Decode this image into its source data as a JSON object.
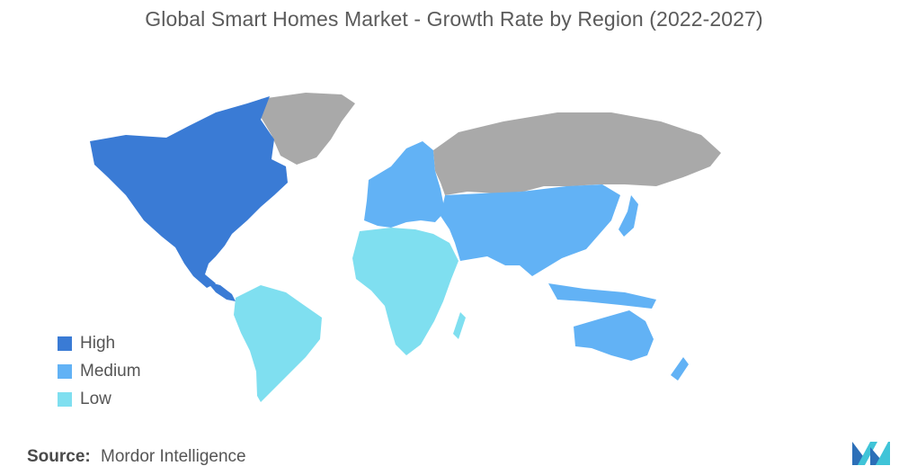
{
  "title": "Global Smart Homes Market - Growth Rate by Region (2022-2027)",
  "legend": [
    {
      "label": "High",
      "color": "#3a7bd5"
    },
    {
      "label": "Medium",
      "color": "#62b2f5"
    },
    {
      "label": "Low",
      "color": "#7fdff0"
    }
  ],
  "no_data_color": "#a9a9a9",
  "regions": {
    "north_america": "High",
    "south_america": "Low",
    "africa": "Low",
    "europe": "Medium",
    "middle_east": "Medium",
    "asia": "Medium",
    "oceania": "Medium",
    "greenland": "No data",
    "russia": "No data"
  },
  "source": {
    "label": "Source:",
    "text": "Mordor Intelligence"
  },
  "logo": "mordor-intelligence-logo"
}
